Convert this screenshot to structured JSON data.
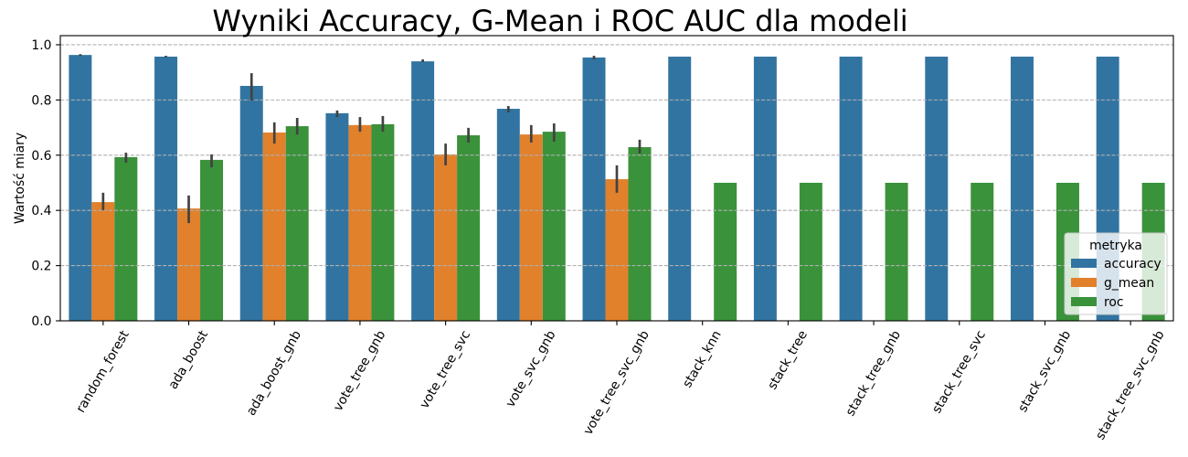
{
  "chart_data": {
    "type": "bar",
    "title": "Wyniki Accuracy, G-Mean i ROC AUC dla modeli",
    "ylabel": "Wartość miary",
    "ylim": [
      0,
      1.033
    ],
    "yticks": [
      0.0,
      0.2,
      0.4,
      0.6,
      0.8,
      1.0
    ],
    "ytick_labels": [
      "0.0",
      "0.2",
      "0.4",
      "0.6",
      "0.8",
      "1.0"
    ],
    "grid": true,
    "legend": {
      "title": "metryka",
      "placement": "lower right"
    },
    "categories": [
      "random_forest",
      "ada_boost",
      "ada_boost_gnb",
      "vote_tree_gnb",
      "vote_tree_svc",
      "vote_svc_gnb",
      "vote_tree_svc_gnb",
      "stack_knn",
      "stack_tree",
      "stack_tree_gnb",
      "stack_tree_svc",
      "stack_svc_gnb",
      "stack_tree_svc_gnb"
    ],
    "series": [
      {
        "name": "accuracy",
        "color": "#3274a1",
        "values": [
          0.963,
          0.957,
          0.851,
          0.752,
          0.94,
          0.768,
          0.954,
          0.957,
          0.957,
          0.957,
          0.957,
          0.957,
          0.957
        ],
        "ci": [
          [
            0.959,
            0.966
          ],
          [
            0.954,
            0.96
          ],
          [
            0.798,
            0.897
          ],
          [
            0.738,
            0.762
          ],
          [
            0.937,
            0.947
          ],
          [
            0.755,
            0.778
          ],
          [
            0.947,
            0.96
          ],
          null,
          null,
          null,
          null,
          null,
          null
        ]
      },
      {
        "name": "g_mean",
        "color": "#e1812c",
        "values": [
          0.43,
          0.407,
          0.682,
          0.709,
          0.603,
          0.675,
          0.513,
          0,
          0,
          0,
          0,
          0,
          0
        ],
        "ci": [
          [
            0.401,
            0.464
          ],
          [
            0.354,
            0.454
          ],
          [
            0.642,
            0.719
          ],
          [
            0.685,
            0.738
          ],
          [
            0.563,
            0.642
          ],
          [
            0.646,
            0.709
          ],
          [
            0.464,
            0.563
          ],
          null,
          null,
          null,
          null,
          null,
          null
        ]
      },
      {
        "name": "roc",
        "color": "#3a923a",
        "values": [
          0.593,
          0.583,
          0.705,
          0.712,
          0.672,
          0.685,
          0.629,
          0.5,
          0.5,
          0.5,
          0.5,
          0.5,
          0.5
        ],
        "ci": [
          [
            0.573,
            0.609
          ],
          [
            0.556,
            0.603
          ],
          [
            0.675,
            0.735
          ],
          [
            0.685,
            0.742
          ],
          [
            0.646,
            0.699
          ],
          [
            0.649,
            0.715
          ],
          [
            0.606,
            0.656
          ],
          null,
          null,
          null,
          null,
          null,
          null
        ]
      }
    ]
  }
}
